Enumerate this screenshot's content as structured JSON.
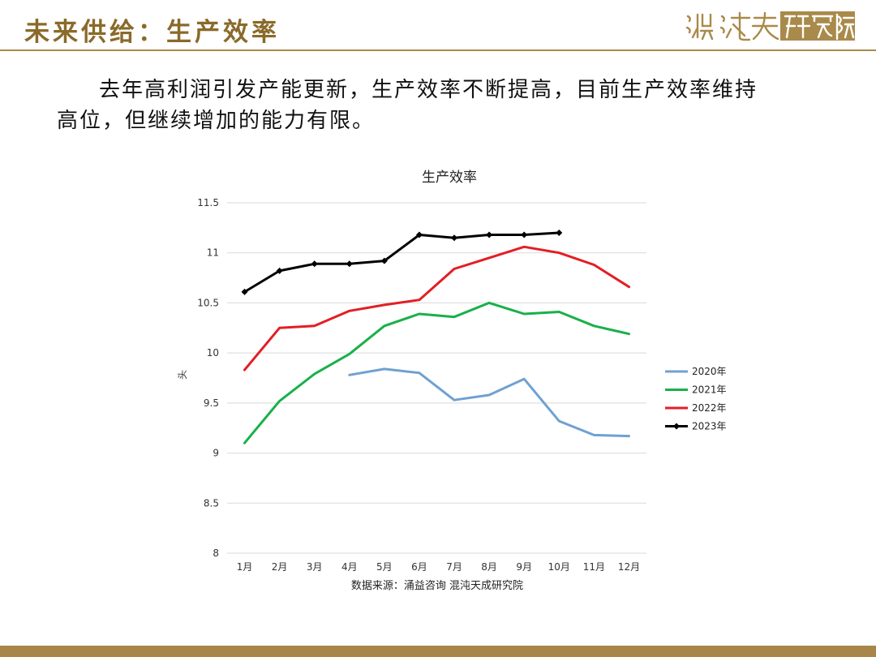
{
  "header": {
    "title": "未来供给：生产效率",
    "logo_text": "混沌天成研究院"
  },
  "body": {
    "text": "去年高利润引发产能更新，生产效率不断提高，目前生产效率维持高位，但继续增加的能力有限。"
  },
  "colors": {
    "accent": "#8a6a2a",
    "rule": "#a98a4a",
    "bottom_bar": "#a88548"
  },
  "chart_data": {
    "type": "line",
    "title": "生产效率",
    "ylabel": "头",
    "xlabel": "",
    "source": "数据来源：涌益咨询 混沌天成研究院",
    "categories": [
      "1月",
      "2月",
      "3月",
      "4月",
      "5月",
      "6月",
      "7月",
      "8月",
      "9月",
      "10月",
      "11月",
      "12月"
    ],
    "ylim": [
      8,
      11.5
    ],
    "yticks": [
      "8",
      "8.5",
      "9",
      "9.5",
      "10",
      "10.5",
      "11",
      "11.5"
    ],
    "grid": true,
    "legend_position": "right",
    "series": [
      {
        "name": "2020年",
        "color": "#6fa1d2",
        "markers": false,
        "values": [
          null,
          null,
          null,
          9.78,
          9.84,
          9.8,
          9.53,
          9.58,
          9.74,
          9.32,
          9.18,
          9.17
        ]
      },
      {
        "name": "2021年",
        "color": "#19b04a",
        "markers": false,
        "values": [
          9.1,
          9.52,
          9.79,
          9.99,
          10.27,
          10.39,
          10.36,
          10.5,
          10.39,
          10.41,
          10.27,
          10.19
        ]
      },
      {
        "name": "2022年",
        "color": "#e31e24",
        "markers": false,
        "values": [
          9.83,
          10.25,
          10.27,
          10.42,
          10.48,
          10.53,
          10.84,
          10.95,
          11.06,
          11.0,
          10.88,
          10.66
        ]
      },
      {
        "name": "2023年",
        "color": "#000000",
        "markers": true,
        "values": [
          10.61,
          10.82,
          10.89,
          10.89,
          10.92,
          11.18,
          11.15,
          11.18,
          11.18,
          11.2,
          null,
          null
        ]
      }
    ]
  }
}
